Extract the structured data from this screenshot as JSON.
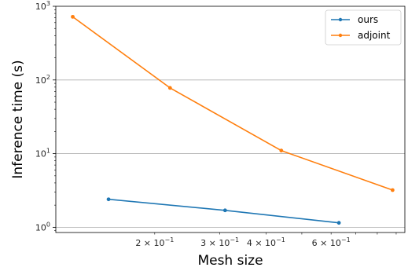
{
  "chart_data": {
    "type": "line",
    "xscale": "log",
    "yscale": "log",
    "xlabel": "Mesh size",
    "ylabel": "Inference time (s)",
    "xlim": [
      0.108,
      0.95
    ],
    "ylim": [
      0.85,
      1000
    ],
    "grid": "y-major",
    "legend_position": "top-right",
    "x_ticks": [
      {
        "value": 0.2,
        "mant": "2 × 10",
        "exp": "−1"
      },
      {
        "value": 0.3,
        "mant": "3 × 10",
        "exp": "−1"
      },
      {
        "value": 0.4,
        "mant": "4 × 10",
        "exp": "−1"
      },
      {
        "value": 0.6,
        "mant": "6 × 10",
        "exp": "−1"
      }
    ],
    "x_minor_ticks": [
      0.5,
      0.7,
      0.8,
      0.9
    ],
    "y_ticks": [
      {
        "value": 1,
        "mant": "10",
        "exp": "0"
      },
      {
        "value": 10,
        "mant": "10",
        "exp": "1"
      },
      {
        "value": 100,
        "mant": "10",
        "exp": "2"
      },
      {
        "value": 1000,
        "mant": "10",
        "exp": "3"
      }
    ],
    "series": [
      {
        "name": "ours",
        "color": "#1f77b4",
        "x": [
          0.15,
          0.31,
          0.63
        ],
        "y": [
          2.4,
          1.7,
          1.15
        ]
      },
      {
        "name": "adjoint",
        "color": "#ff7f0e",
        "x": [
          0.12,
          0.22,
          0.44,
          0.88
        ],
        "y": [
          720,
          78,
          11,
          3.2
        ]
      }
    ]
  }
}
